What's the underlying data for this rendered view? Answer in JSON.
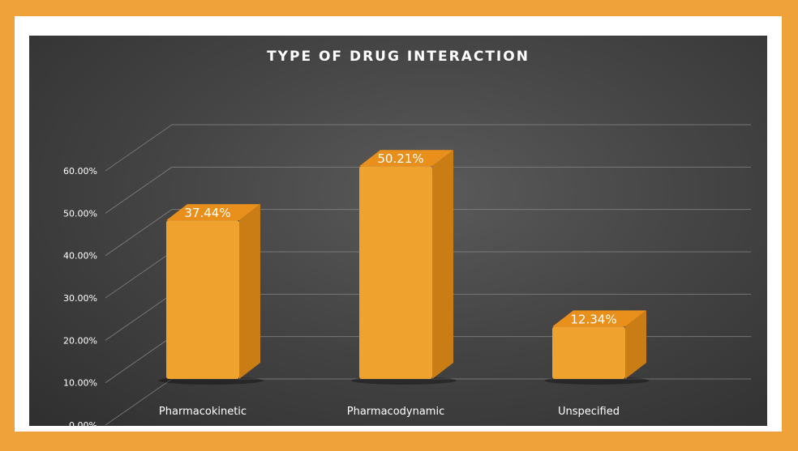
{
  "chart_data": {
    "type": "bar",
    "title": "TYPE OF DRUG INTERACTION",
    "categories": [
      "Pharmacokinetic",
      "Pharmacodynamic",
      "Unspecified"
    ],
    "values": [
      37.44,
      50.21,
      12.34
    ],
    "data_labels": [
      "37.44%",
      "50.21%",
      "12.34%"
    ],
    "ylim": [
      0,
      60
    ],
    "yticks": [
      0,
      10,
      20,
      30,
      40,
      50,
      60
    ],
    "ytick_labels": [
      "0.00%",
      "10.00%",
      "20.00%",
      "30.00%",
      "40.00%",
      "50.00%",
      "60.00%"
    ],
    "grid": true,
    "style": "3d-column",
    "colors": {
      "bar_front": "#f0a22e",
      "bar_side": "#c97d14",
      "bar_top": "#e9901c",
      "frame": "#f0a23a",
      "gridline": "#8c8c8c",
      "text": "#ffffff"
    }
  }
}
